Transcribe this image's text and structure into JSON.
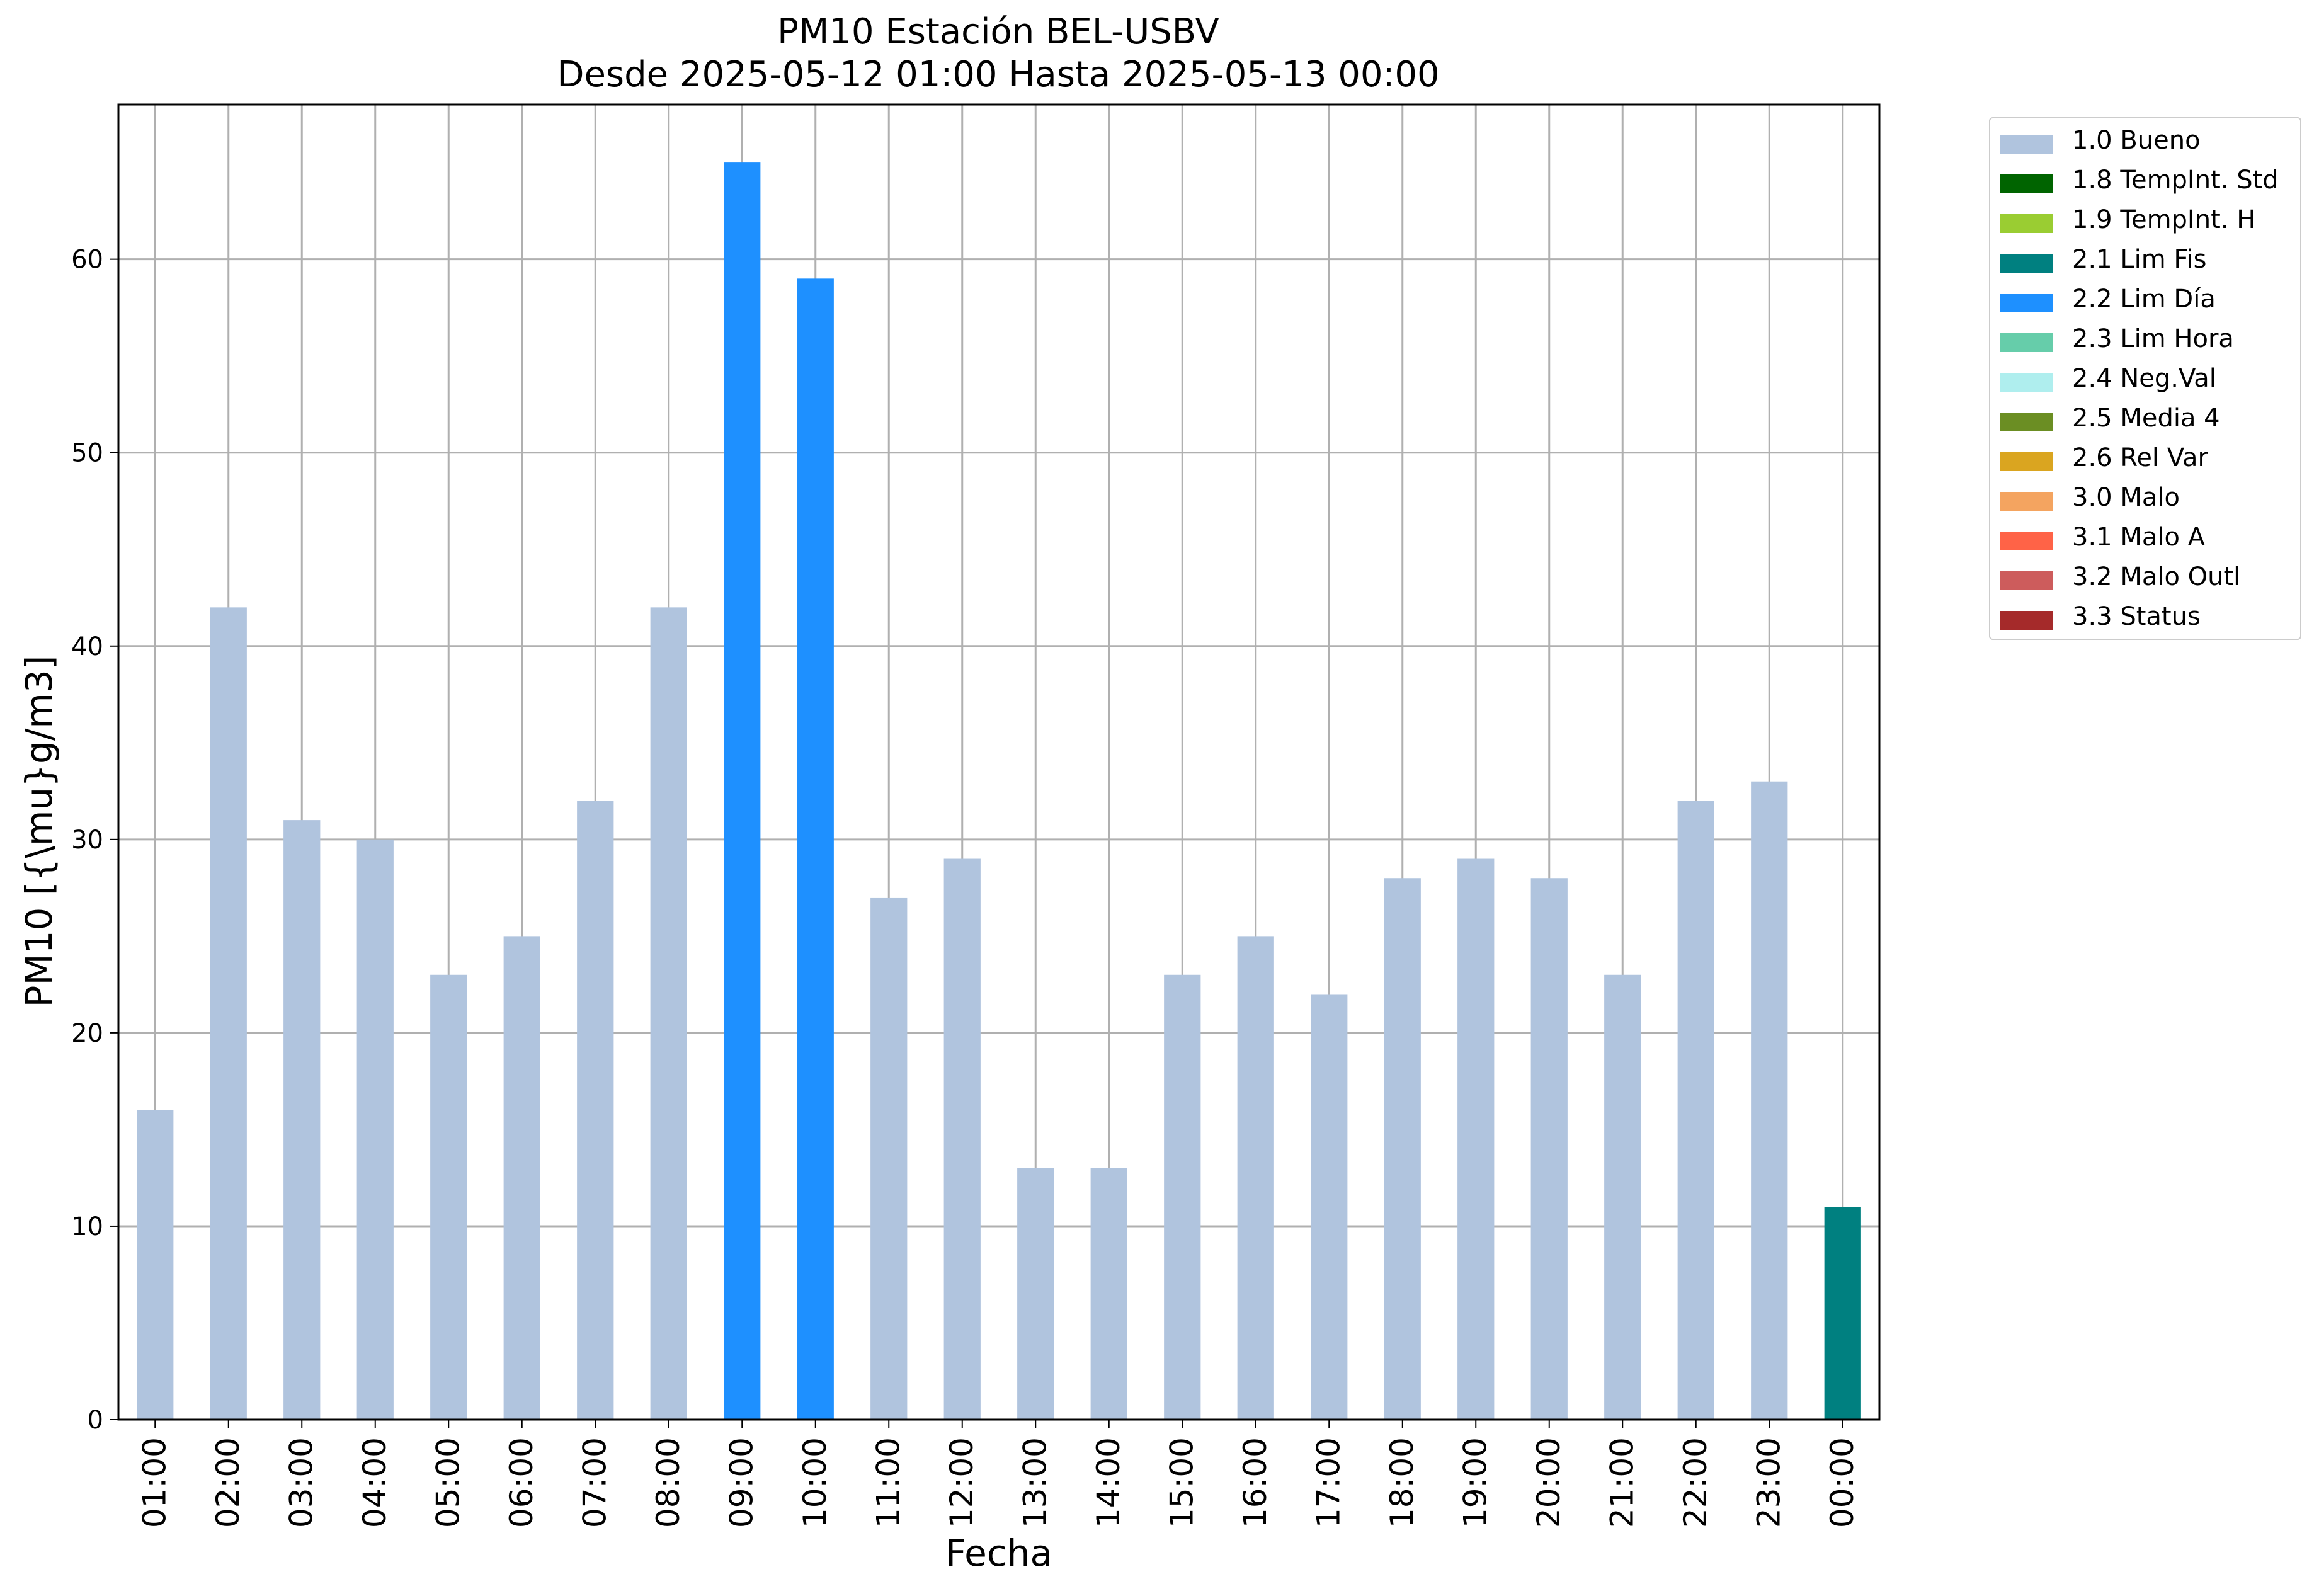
{
  "chart_data": {
    "type": "bar",
    "title": "PM10 Estación BEL-USBV",
    "subtitle": "Desde 2025-05-12 01:00 Hasta 2025-05-13 00:00",
    "xlabel": "Fecha",
    "ylabel": "PM10 [{\\mu}g/m3]",
    "ylim": [
      0,
      68
    ],
    "yticks": [
      0,
      10,
      20,
      30,
      40,
      50,
      60
    ],
    "grid": true,
    "legend_position": "outside top-right",
    "categories": [
      "01:00",
      "02:00",
      "03:00",
      "04:00",
      "05:00",
      "06:00",
      "07:00",
      "08:00",
      "09:00",
      "10:00",
      "11:00",
      "12:00",
      "13:00",
      "14:00",
      "15:00",
      "16:00",
      "17:00",
      "18:00",
      "19:00",
      "20:00",
      "21:00",
      "22:00",
      "23:00",
      "00:00"
    ],
    "values": [
      16,
      42,
      31,
      30,
      23,
      25,
      32,
      42,
      65,
      59,
      27,
      29,
      13,
      13,
      23,
      25,
      22,
      28,
      29,
      28,
      23,
      32,
      33,
      11
    ],
    "flags": [
      "1.0 Bueno",
      "1.0 Bueno",
      "1.0 Bueno",
      "1.0 Bueno",
      "1.0 Bueno",
      "1.0 Bueno",
      "1.0 Bueno",
      "1.0 Bueno",
      "2.2 Lim Día",
      "2.2 Lim Día",
      "1.0 Bueno",
      "1.0 Bueno",
      "1.0 Bueno",
      "1.0 Bueno",
      "1.0 Bueno",
      "1.0 Bueno",
      "1.0 Bueno",
      "1.0 Bueno",
      "1.0 Bueno",
      "1.0 Bueno",
      "1.0 Bueno",
      "1.0 Bueno",
      "1.0 Bueno",
      "2.1 Lim Fis"
    ],
    "legend": [
      {
        "label": "1.0 Bueno",
        "color": "#b0c4de"
      },
      {
        "label": "1.8 TempInt. Std",
        "color": "#006400"
      },
      {
        "label": "1.9 TempInt. H",
        "color": "#9acd32"
      },
      {
        "label": "2.1 Lim Fis",
        "color": "#008080"
      },
      {
        "label": "2.2 Lim Día",
        "color": "#1e90ff"
      },
      {
        "label": "2.3 Lim Hora",
        "color": "#66cdaa"
      },
      {
        "label": "2.4 Neg.Val",
        "color": "#afeeee"
      },
      {
        "label": "2.5 Media 4",
        "color": "#6b8e23"
      },
      {
        "label": "2.6 Rel Var",
        "color": "#daa520"
      },
      {
        "label": "3.0 Malo",
        "color": "#f4a460"
      },
      {
        "label": "3.1 Malo A",
        "color": "#ff6347"
      },
      {
        "label": "3.2 Malo Outl",
        "color": "#cd5c5c"
      },
      {
        "label": "3.3 Status",
        "color": "#a52a2a"
      }
    ]
  }
}
